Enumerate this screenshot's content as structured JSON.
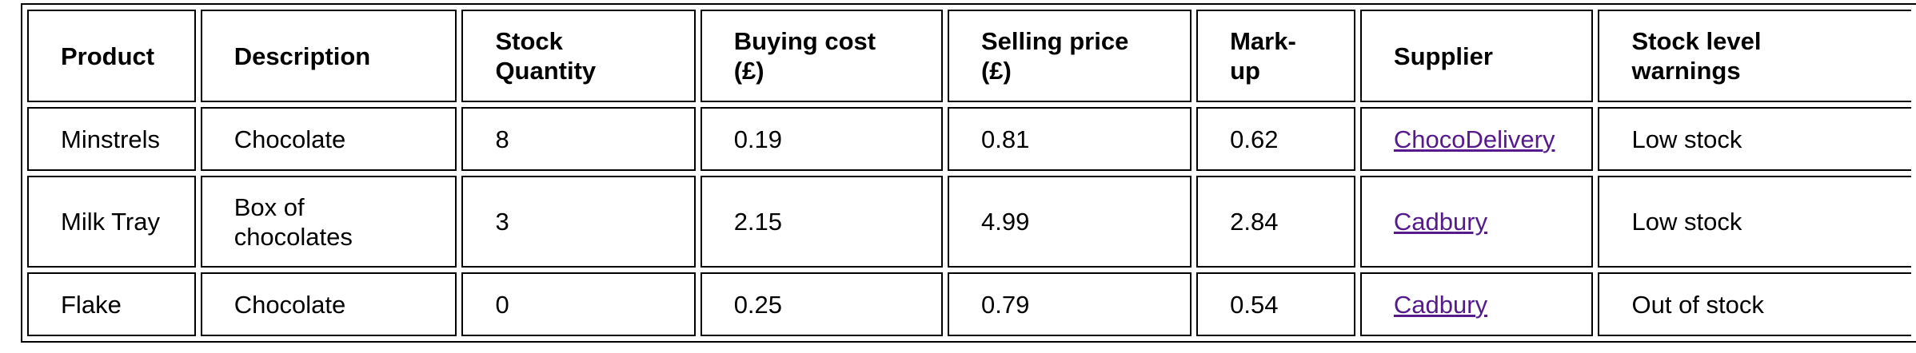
{
  "table": {
    "headers": [
      "Product",
      "Description",
      "Stock\nQuantity",
      "Buying cost\n(£)",
      "Selling price\n(£)",
      "Mark-\nup",
      "Supplier",
      "Stock level\nwarnings"
    ],
    "rows": [
      {
        "product": "Minstrels",
        "description": "Chocolate",
        "stock_quantity": "8",
        "buying_cost": "0.19",
        "selling_price": "0.81",
        "mark_up": "0.62",
        "supplier": "ChocoDelivery",
        "stock_warning": "Low stock"
      },
      {
        "product": "Milk Tray",
        "description": "Box of\nchocolates",
        "stock_quantity": "3",
        "buying_cost": "2.15",
        "selling_price": "4.99",
        "mark_up": "2.84",
        "supplier": "Cadbury",
        "stock_warning": "Low stock"
      },
      {
        "product": "Flake",
        "description": "Chocolate",
        "stock_quantity": "0",
        "buying_cost": "0.25",
        "selling_price": "0.79",
        "mark_up": "0.54",
        "supplier": "Cadbury",
        "stock_warning": "Out of stock"
      }
    ]
  },
  "colors": {
    "border": "#000000",
    "visited_link": "#551a8b",
    "background": "#ffffff"
  }
}
